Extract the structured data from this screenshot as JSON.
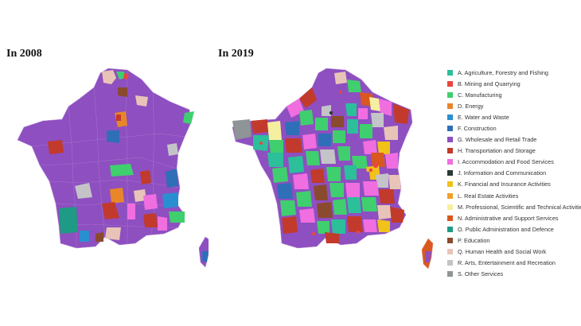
{
  "titles": {
    "left": "In 2008",
    "right": "In 2019"
  },
  "legend": [
    {
      "label": "A. Agriculture, Forestry and Fishing",
      "color": "#2bbf9a"
    },
    {
      "label": "B. Mining and Quarrying",
      "color": "#e8473d"
    },
    {
      "label": "C. Manufacturing",
      "color": "#3fcf6e"
    },
    {
      "label": "D. Energy",
      "color": "#e8862a"
    },
    {
      "label": "E. Water and Waste",
      "color": "#2a8fd0"
    },
    {
      "label": "F. Construction",
      "color": "#2e6fb8"
    },
    {
      "label": "G. Wholesale and Retail Trade",
      "color": "#8e4fc0"
    },
    {
      "label": "H. Transportation and Storage",
      "color": "#c23a2b"
    },
    {
      "label": "I. Accommodation and Food Services",
      "color": "#f06ee0"
    },
    {
      "label": "J. Information and Communication",
      "color": "#2b3a36"
    },
    {
      "label": "K. Financial and Insurance Activities",
      "color": "#f0c21a"
    },
    {
      "label": "L. Real Estate Activities",
      "color": "#f0a02a"
    },
    {
      "label": "M. Professional, Scientific and Technical Activities",
      "color": "#f5f0a0"
    },
    {
      "label": "N. Administrative and Support Services",
      "color": "#d9581f"
    },
    {
      "label": "O. Public Administration and Defence",
      "color": "#1f9a84"
    },
    {
      "label": "P. Education",
      "color": "#8a4a2e"
    },
    {
      "label": "Q. Human Health and Social Work",
      "color": "#e8c4b8"
    },
    {
      "label": "R. Arts, Entertainment and Recreation",
      "color": "#c4c4c8"
    },
    {
      "label": "S. Other Services",
      "color": "#8f9496"
    }
  ]
}
